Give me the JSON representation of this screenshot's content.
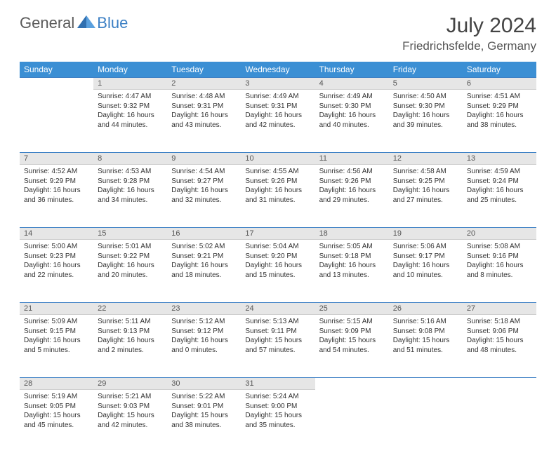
{
  "logo": {
    "text1": "General",
    "text2": "Blue"
  },
  "title": "July 2024",
  "location": "Friedrichsfelde, Germany",
  "colors": {
    "header_bg": "#3b8fd4",
    "accent_line": "#3b7fc4",
    "daynum_bg": "#e6e6e6",
    "text": "#333333"
  },
  "weekdays": [
    "Sunday",
    "Monday",
    "Tuesday",
    "Wednesday",
    "Thursday",
    "Friday",
    "Saturday"
  ],
  "weeks": [
    {
      "nums": [
        "",
        "1",
        "2",
        "3",
        "4",
        "5",
        "6"
      ],
      "cells": [
        null,
        {
          "sunrise": "Sunrise: 4:47 AM",
          "sunset": "Sunset: 9:32 PM",
          "dl1": "Daylight: 16 hours",
          "dl2": "and 44 minutes."
        },
        {
          "sunrise": "Sunrise: 4:48 AM",
          "sunset": "Sunset: 9:31 PM",
          "dl1": "Daylight: 16 hours",
          "dl2": "and 43 minutes."
        },
        {
          "sunrise": "Sunrise: 4:49 AM",
          "sunset": "Sunset: 9:31 PM",
          "dl1": "Daylight: 16 hours",
          "dl2": "and 42 minutes."
        },
        {
          "sunrise": "Sunrise: 4:49 AM",
          "sunset": "Sunset: 9:30 PM",
          "dl1": "Daylight: 16 hours",
          "dl2": "and 40 minutes."
        },
        {
          "sunrise": "Sunrise: 4:50 AM",
          "sunset": "Sunset: 9:30 PM",
          "dl1": "Daylight: 16 hours",
          "dl2": "and 39 minutes."
        },
        {
          "sunrise": "Sunrise: 4:51 AM",
          "sunset": "Sunset: 9:29 PM",
          "dl1": "Daylight: 16 hours",
          "dl2": "and 38 minutes."
        }
      ]
    },
    {
      "nums": [
        "7",
        "8",
        "9",
        "10",
        "11",
        "12",
        "13"
      ],
      "cells": [
        {
          "sunrise": "Sunrise: 4:52 AM",
          "sunset": "Sunset: 9:29 PM",
          "dl1": "Daylight: 16 hours",
          "dl2": "and 36 minutes."
        },
        {
          "sunrise": "Sunrise: 4:53 AM",
          "sunset": "Sunset: 9:28 PM",
          "dl1": "Daylight: 16 hours",
          "dl2": "and 34 minutes."
        },
        {
          "sunrise": "Sunrise: 4:54 AM",
          "sunset": "Sunset: 9:27 PM",
          "dl1": "Daylight: 16 hours",
          "dl2": "and 32 minutes."
        },
        {
          "sunrise": "Sunrise: 4:55 AM",
          "sunset": "Sunset: 9:26 PM",
          "dl1": "Daylight: 16 hours",
          "dl2": "and 31 minutes."
        },
        {
          "sunrise": "Sunrise: 4:56 AM",
          "sunset": "Sunset: 9:26 PM",
          "dl1": "Daylight: 16 hours",
          "dl2": "and 29 minutes."
        },
        {
          "sunrise": "Sunrise: 4:58 AM",
          "sunset": "Sunset: 9:25 PM",
          "dl1": "Daylight: 16 hours",
          "dl2": "and 27 minutes."
        },
        {
          "sunrise": "Sunrise: 4:59 AM",
          "sunset": "Sunset: 9:24 PM",
          "dl1": "Daylight: 16 hours",
          "dl2": "and 25 minutes."
        }
      ]
    },
    {
      "nums": [
        "14",
        "15",
        "16",
        "17",
        "18",
        "19",
        "20"
      ],
      "cells": [
        {
          "sunrise": "Sunrise: 5:00 AM",
          "sunset": "Sunset: 9:23 PM",
          "dl1": "Daylight: 16 hours",
          "dl2": "and 22 minutes."
        },
        {
          "sunrise": "Sunrise: 5:01 AM",
          "sunset": "Sunset: 9:22 PM",
          "dl1": "Daylight: 16 hours",
          "dl2": "and 20 minutes."
        },
        {
          "sunrise": "Sunrise: 5:02 AM",
          "sunset": "Sunset: 9:21 PM",
          "dl1": "Daylight: 16 hours",
          "dl2": "and 18 minutes."
        },
        {
          "sunrise": "Sunrise: 5:04 AM",
          "sunset": "Sunset: 9:20 PM",
          "dl1": "Daylight: 16 hours",
          "dl2": "and 15 minutes."
        },
        {
          "sunrise": "Sunrise: 5:05 AM",
          "sunset": "Sunset: 9:18 PM",
          "dl1": "Daylight: 16 hours",
          "dl2": "and 13 minutes."
        },
        {
          "sunrise": "Sunrise: 5:06 AM",
          "sunset": "Sunset: 9:17 PM",
          "dl1": "Daylight: 16 hours",
          "dl2": "and 10 minutes."
        },
        {
          "sunrise": "Sunrise: 5:08 AM",
          "sunset": "Sunset: 9:16 PM",
          "dl1": "Daylight: 16 hours",
          "dl2": "and 8 minutes."
        }
      ]
    },
    {
      "nums": [
        "21",
        "22",
        "23",
        "24",
        "25",
        "26",
        "27"
      ],
      "cells": [
        {
          "sunrise": "Sunrise: 5:09 AM",
          "sunset": "Sunset: 9:15 PM",
          "dl1": "Daylight: 16 hours",
          "dl2": "and 5 minutes."
        },
        {
          "sunrise": "Sunrise: 5:11 AM",
          "sunset": "Sunset: 9:13 PM",
          "dl1": "Daylight: 16 hours",
          "dl2": "and 2 minutes."
        },
        {
          "sunrise": "Sunrise: 5:12 AM",
          "sunset": "Sunset: 9:12 PM",
          "dl1": "Daylight: 16 hours",
          "dl2": "and 0 minutes."
        },
        {
          "sunrise": "Sunrise: 5:13 AM",
          "sunset": "Sunset: 9:11 PM",
          "dl1": "Daylight: 15 hours",
          "dl2": "and 57 minutes."
        },
        {
          "sunrise": "Sunrise: 5:15 AM",
          "sunset": "Sunset: 9:09 PM",
          "dl1": "Daylight: 15 hours",
          "dl2": "and 54 minutes."
        },
        {
          "sunrise": "Sunrise: 5:16 AM",
          "sunset": "Sunset: 9:08 PM",
          "dl1": "Daylight: 15 hours",
          "dl2": "and 51 minutes."
        },
        {
          "sunrise": "Sunrise: 5:18 AM",
          "sunset": "Sunset: 9:06 PM",
          "dl1": "Daylight: 15 hours",
          "dl2": "and 48 minutes."
        }
      ]
    },
    {
      "nums": [
        "28",
        "29",
        "30",
        "31",
        "",
        "",
        ""
      ],
      "cells": [
        {
          "sunrise": "Sunrise: 5:19 AM",
          "sunset": "Sunset: 9:05 PM",
          "dl1": "Daylight: 15 hours",
          "dl2": "and 45 minutes."
        },
        {
          "sunrise": "Sunrise: 5:21 AM",
          "sunset": "Sunset: 9:03 PM",
          "dl1": "Daylight: 15 hours",
          "dl2": "and 42 minutes."
        },
        {
          "sunrise": "Sunrise: 5:22 AM",
          "sunset": "Sunset: 9:01 PM",
          "dl1": "Daylight: 15 hours",
          "dl2": "and 38 minutes."
        },
        {
          "sunrise": "Sunrise: 5:24 AM",
          "sunset": "Sunset: 9:00 PM",
          "dl1": "Daylight: 15 hours",
          "dl2": "and 35 minutes."
        },
        null,
        null,
        null
      ]
    }
  ]
}
